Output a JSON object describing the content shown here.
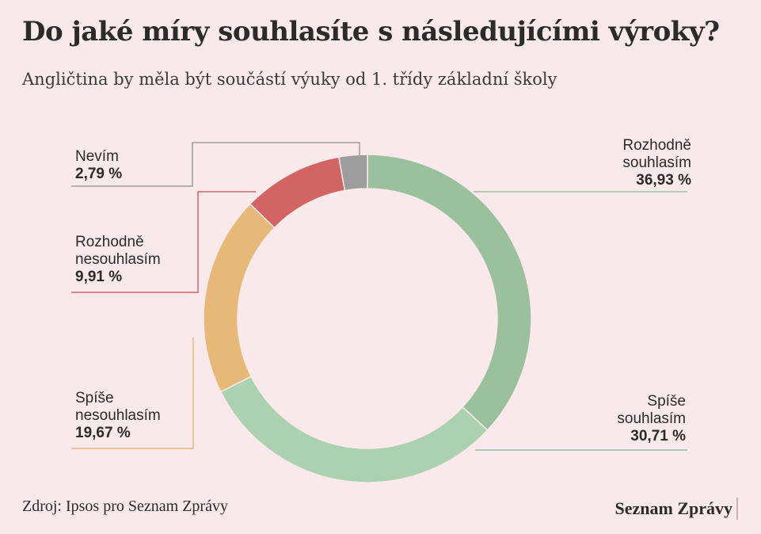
{
  "header": {
    "title": "Do jaké míry souhlasíte s následujícími výroky?",
    "subtitle": "Angličtina by měla být součástí výuky od 1. třídy základní školy"
  },
  "footer": {
    "source": "Zdroj: Ipsos pro Seznam Zprávy",
    "brand": "Seznam Zprávy"
  },
  "labels": {
    "rozhodne_souhlasim": {
      "name_1": "Rozhodně",
      "name_2": "souhlasím",
      "value": "36,93 %"
    },
    "spise_souhlasim": {
      "name_1": "Spíše",
      "name_2": "souhlasím",
      "value": "30,71 %"
    },
    "spise_nesouhlasim": {
      "name_1": "Spíše",
      "name_2": "nesouhlasím",
      "value": "19,67 %"
    },
    "rozhodne_nesouhlasim": {
      "name_1": "Rozhodně",
      "name_2": "nesouhlasím",
      "value": "9,91 %"
    },
    "nevim": {
      "name_1": "Nevím",
      "value": "2,79 %"
    }
  },
  "chart_data": {
    "type": "pie",
    "donut": true,
    "title": "Do jaké míry souhlasíte s následujícími výroky?",
    "subtitle": "Angličtina by měla být součástí výuky od 1. třídy základní školy",
    "categories": [
      "Rozhodně souhlasím",
      "Spíše souhlasím",
      "Spíše nesouhlasím",
      "Rozhodně nesouhlasím",
      "Nevím"
    ],
    "values": [
      36.93,
      30.71,
      19.67,
      9.91,
      2.79
    ],
    "colors": [
      "#9bc09e",
      "#acd1b0",
      "#e7b978",
      "#d36464",
      "#9d9d9d"
    ],
    "leader_colors": [
      "#9bc09e",
      "#9bc09e",
      "#e7b978",
      "#d36464",
      "#9d9d9d"
    ]
  }
}
